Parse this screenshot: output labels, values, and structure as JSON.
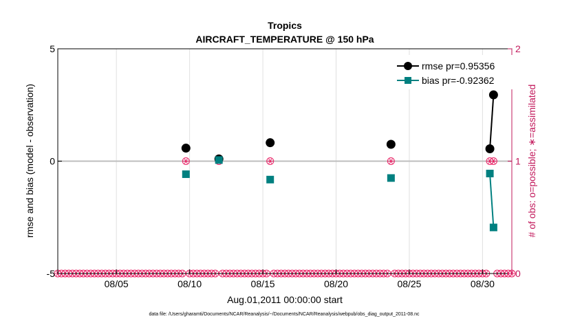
{
  "chart_data": {
    "type": "line",
    "title": "Tropics",
    "subtitle": "AIRCRAFT_TEMPERATURE @ 150 hPa",
    "xlabel": "Aug.01,2011 00:00:00 start",
    "ylabel": "rmse and bias (model - observation)",
    "y2label": "# of obs: o=possible; ∗=assimilated",
    "footnote": "data file: /Users/gharamti/Documents/NCAR/Reanalysis/~/Documents/NCAR/Reanalysis/webpub/obs_diag_output_2011-08.nc",
    "xlim": [
      1,
      32
    ],
    "ylim": [
      -5,
      5
    ],
    "y2lim": [
      0,
      2
    ],
    "x_ticks": [
      {
        "x": 5,
        "label": "08/05"
      },
      {
        "x": 10,
        "label": "08/10"
      },
      {
        "x": 15,
        "label": "08/15"
      },
      {
        "x": 20,
        "label": "08/20"
      },
      {
        "x": 25,
        "label": "08/25"
      },
      {
        "x": 30,
        "label": "08/30"
      }
    ],
    "y_ticks": [
      {
        "y": -5,
        "label": "-5"
      },
      {
        "y": 0,
        "label": "0"
      },
      {
        "y": 5,
        "label": "5"
      }
    ],
    "y2_ticks": [
      {
        "y": 0,
        "label": "0"
      },
      {
        "y": 1,
        "label": "1"
      },
      {
        "y": 2,
        "label": "2"
      }
    ],
    "grid": true,
    "legend_position": "top-right",
    "series": [
      {
        "name": "rmse pr=0.95356",
        "color": "#000000",
        "marker": "circle",
        "segments": [
          [
            {
              "x": 9.75,
              "y": 0.58
            }
          ],
          [
            {
              "x": 12.0,
              "y": 0.1
            }
          ],
          [
            {
              "x": 15.5,
              "y": 0.82
            }
          ],
          [
            {
              "x": 23.75,
              "y": 0.75
            }
          ],
          [
            {
              "x": 30.5,
              "y": 0.55
            },
            {
              "x": 30.75,
              "y": 2.95
            }
          ]
        ]
      },
      {
        "name": "bias pr=-0.92362",
        "color": "#008080",
        "marker": "square",
        "segments": [
          [
            {
              "x": 9.75,
              "y": -0.58
            }
          ],
          [
            {
              "x": 12.0,
              "y": 0.05
            }
          ],
          [
            {
              "x": 15.5,
              "y": -0.82
            }
          ],
          [
            {
              "x": 23.75,
              "y": -0.75
            }
          ],
          [
            {
              "x": 30.5,
              "y": -0.55
            },
            {
              "x": 30.75,
              "y": -2.95
            }
          ]
        ]
      }
    ],
    "obs_counts": {
      "name": "# of obs",
      "color": "#e91e63",
      "x_start": 1.0,
      "x_step": 0.25,
      "x_end": 32.0,
      "ones_at": [
        9.75,
        12.0,
        15.5,
        23.75,
        30.5,
        30.75
      ]
    }
  }
}
